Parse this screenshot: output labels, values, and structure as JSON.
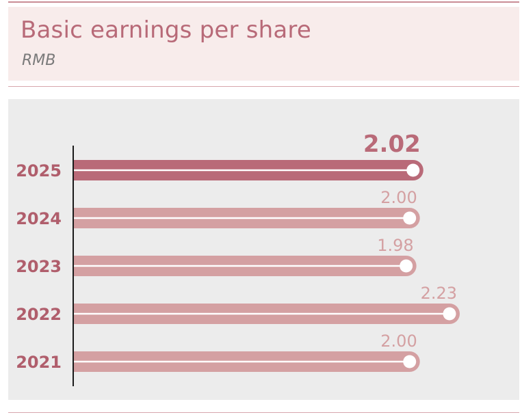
{
  "header": {
    "title": "Basic earnings per share",
    "subtitle": "RMB"
  },
  "colors": {
    "highlight_bar": "#b96a78",
    "bar": "#d4a0a2",
    "value_highlight": "#b96a78",
    "value": "#d4a0a2",
    "year_label": "#b05e6c"
  },
  "chart_data": {
    "type": "bar",
    "orientation": "horizontal",
    "categories": [
      "2025",
      "2024",
      "2023",
      "2022",
      "2021"
    ],
    "values": [
      2.02,
      2.0,
      1.98,
      2.23,
      2.0
    ],
    "value_labels": [
      "2.02",
      "2.00",
      "1.98",
      "2.23",
      "2.00"
    ],
    "highlight_index": 0,
    "xlim": [
      0,
      2.23
    ],
    "grid": false,
    "legend": "none"
  }
}
